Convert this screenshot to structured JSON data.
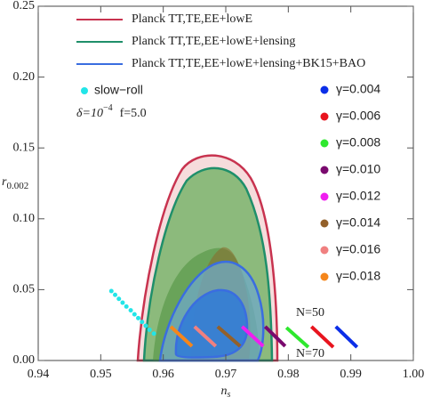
{
  "chart_data": {
    "type": "line",
    "x_label": "n",
    "x_label_sub": "s",
    "y_label": "r",
    "y_label_sub": "0.002",
    "xlim": [
      0.94,
      1.0
    ],
    "xticks": [
      0.94,
      0.95,
      0.96,
      0.97,
      0.98,
      0.99,
      {
        "value": 1.0,
        "label": "1.00"
      }
    ],
    "ylim": [
      0,
      0.25
    ],
    "yticks": [
      {
        "value": 0,
        "label": "0.00"
      },
      0.05,
      {
        "value": 0.1,
        "label": "0.10"
      },
      0.15,
      {
        "value": 0.2,
        "label": "0.20"
      },
      0.25
    ],
    "contours": [
      {
        "name": "Planck TT,TE,EE+lowE",
        "color": "#c8334f"
      },
      {
        "name": "Planck TT,TE,EE+lowE+lensing",
        "color": "#1f8f6a"
      },
      {
        "name": "Planck TT,TE,EE+lowE+lensing+BK15+BAO",
        "color": "#3a6de0"
      }
    ],
    "slow_roll": {
      "name": "slow−roll",
      "color": "#22e5e8",
      "x": [
        0.9517,
        0.9523,
        0.9529,
        0.9535,
        0.9541,
        0.9548,
        0.9554,
        0.956,
        0.9566,
        0.9572,
        0.9578,
        0.9585
      ],
      "values": [
        0.049,
        0.0463,
        0.0435,
        0.0408,
        0.0381,
        0.0354,
        0.0326,
        0.0299,
        0.0272,
        0.0245,
        0.0217,
        0.019
      ]
    },
    "annotation_delta": "δ=10",
    "annotation_delta_exp": "−4",
    "annotation_f": "f=5.0",
    "annotation_n50": "N=50",
    "annotation_n70": "N=70",
    "series": [
      {
        "name": "γ=0.004",
        "color": "#0b2ee8",
        "x": [
          0.9876,
          0.991
        ],
        "values": [
          0.0239,
          0.0094
        ]
      },
      {
        "name": "γ=0.006",
        "color": "#e8141e",
        "x": [
          0.9837,
          0.9872
        ],
        "values": [
          0.0239,
          0.0094
        ]
      },
      {
        "name": "γ=0.008",
        "color": "#2ee82e",
        "x": [
          0.9797,
          0.9832
        ],
        "values": [
          0.0232,
          0.0094
        ]
      },
      {
        "name": "γ=0.010",
        "color": "#7a0a6e",
        "x": [
          0.9763,
          0.9795
        ],
        "values": [
          0.0239,
          0.0101
        ]
      },
      {
        "name": "γ=0.012",
        "color": "#f01ef0",
        "x": [
          0.9726,
          0.976
        ],
        "values": [
          0.0239,
          0.0101
        ]
      },
      {
        "name": "γ=0.014",
        "color": "#93602a",
        "x": [
          0.9687,
          0.9723
        ],
        "values": [
          0.0239,
          0.0101
        ]
      },
      {
        "name": "γ=0.016",
        "color": "#f08080",
        "x": [
          0.965,
          0.9684
        ],
        "values": [
          0.0239,
          0.0101
        ]
      },
      {
        "name": "γ=0.018",
        "color": "#f5861b",
        "x": [
          0.9612,
          0.9646
        ],
        "values": [
          0.0239,
          0.0101
        ]
      }
    ]
  }
}
